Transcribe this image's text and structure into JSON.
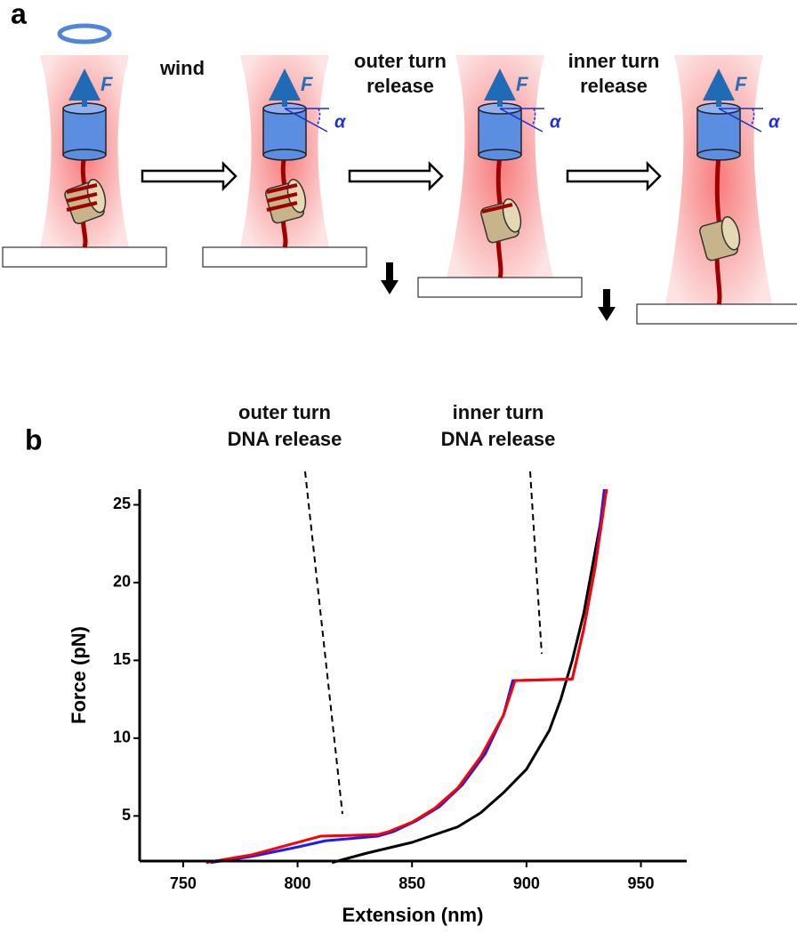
{
  "panel_a": {
    "label": "a",
    "steps": [
      {
        "lines": [
          "wind"
        ]
      },
      {
        "lines": [
          "outer turn",
          "release"
        ]
      },
      {
        "lines": [
          "inner turn",
          "release"
        ]
      }
    ],
    "force_labels": [
      "F",
      "F",
      "F",
      "F"
    ],
    "angle_labels": [
      "α",
      "α",
      "α"
    ]
  },
  "chart_data": {
    "type": "line",
    "panel_label": "b",
    "annotations": [
      {
        "lines": [
          "outer turn",
          "DNA release"
        ]
      },
      {
        "lines": [
          "inner turn",
          "DNA release"
        ]
      }
    ],
    "x_label": "Extension (nm)",
    "y_label": "Force (pN)",
    "xlim": [
      731,
      970
    ],
    "ylim": [
      2.1,
      26
    ],
    "xticks": [
      750,
      800,
      850,
      900,
      950
    ],
    "yticks": [
      5,
      10,
      15,
      20,
      25
    ],
    "series": [
      {
        "color": "#000000",
        "x": [
          815,
          830,
          850,
          870,
          880,
          890,
          900,
          910,
          915,
          920,
          925,
          930,
          935
        ],
        "values": [
          2.0,
          2.6,
          3.3,
          4.3,
          5.2,
          6.5,
          8.0,
          10.5,
          12.5,
          15,
          18,
          22,
          26
        ]
      },
      {
        "color": "#1a1aff",
        "x": [
          762,
          780,
          800,
          812,
          835,
          842,
          852,
          862,
          872,
          882,
          890,
          894,
          920,
          925,
          930,
          934
        ],
        "values": [
          2.0,
          2.4,
          3.0,
          3.4,
          3.7,
          4.0,
          4.7,
          5.6,
          7.0,
          9.0,
          11.5,
          13.7,
          13.8,
          17,
          21,
          26
        ]
      },
      {
        "color": "#ff0000",
        "x": [
          760,
          780,
          800,
          810,
          835,
          840,
          850,
          860,
          870,
          880,
          890,
          895,
          920,
          925,
          930,
          935
        ],
        "values": [
          2.0,
          2.5,
          3.3,
          3.7,
          3.8,
          4.0,
          4.6,
          5.5,
          6.8,
          8.8,
          11.5,
          13.7,
          13.8,
          17,
          21,
          26
        ]
      }
    ]
  }
}
